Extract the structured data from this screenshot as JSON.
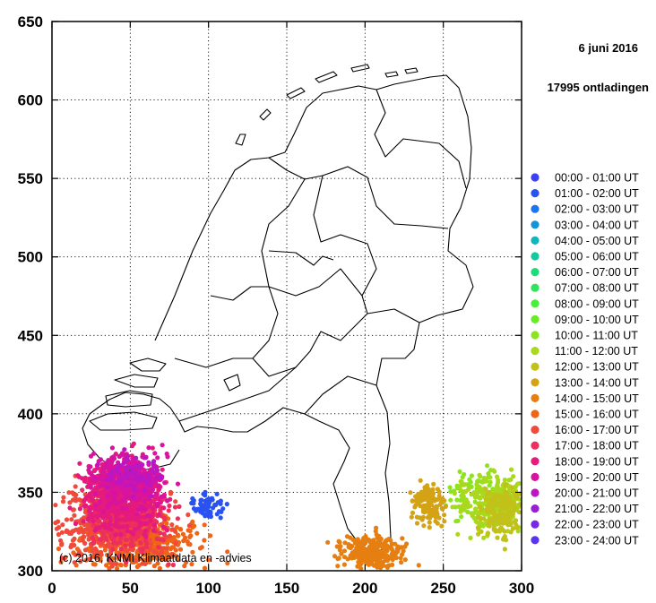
{
  "chart_data": {
    "type": "scatter",
    "title": "6 juni 2016",
    "subtitle": "17995 ontladingen",
    "credit": "(c) 2016, KNMI Klimaatdata en -advies",
    "xlim": [
      0,
      300
    ],
    "ylim": [
      300,
      650
    ],
    "x_ticks": [
      0,
      50,
      100,
      150,
      200,
      250,
      300
    ],
    "y_ticks": [
      300,
      350,
      400,
      450,
      500,
      550,
      600,
      650
    ],
    "grid": true,
    "legend_position": "right",
    "series": [
      {
        "name": "00:00 - 01:00 UT",
        "color": "#3f3ff5",
        "count": 0
      },
      {
        "name": "01:00 - 02:00 UT",
        "color": "#2a52f0",
        "count": 60,
        "center": [
          100,
          341
        ],
        "spread": [
          5,
          4
        ]
      },
      {
        "name": "02:00 - 03:00 UT",
        "color": "#1a75ee",
        "count": 0
      },
      {
        "name": "03:00 - 04:00 UT",
        "color": "#1493d6",
        "count": 0
      },
      {
        "name": "04:00 - 05:00 UT",
        "color": "#12b4be",
        "count": 0
      },
      {
        "name": "05:00 - 06:00 UT",
        "color": "#14c99d",
        "count": 0
      },
      {
        "name": "06:00 - 07:00 UT",
        "color": "#1cdc7a",
        "count": 0
      },
      {
        "name": "07:00 - 08:00 UT",
        "color": "#2de65a",
        "count": 0
      },
      {
        "name": "08:00 - 09:00 UT",
        "color": "#47ef3a",
        "count": 0
      },
      {
        "name": "09:00 - 10:00 UT",
        "color": "#66ee22",
        "count": 0
      },
      {
        "name": "10:00 - 11:00 UT",
        "color": "#8ce41e",
        "count": 90,
        "center": [
          272,
          348
        ],
        "spread": [
          9,
          7
        ]
      },
      {
        "name": "11:00 - 12:00 UT",
        "color": "#a9d81c",
        "count": 260,
        "center": [
          283,
          344
        ],
        "spread": [
          11,
          9
        ]
      },
      {
        "name": "12:00 - 13:00 UT",
        "color": "#c2c11a",
        "count": 180,
        "center": [
          288,
          338
        ],
        "spread": [
          7,
          8
        ]
      },
      {
        "name": "13:00 - 14:00 UT",
        "color": "#d4a315",
        "count": 150,
        "center": [
          240,
          343
        ],
        "spread": [
          5,
          6
        ]
      },
      {
        "name": "14:00 - 15:00 UT",
        "color": "#e67f12",
        "count": 260,
        "center": [
          205,
          312
        ],
        "spread": [
          10,
          5
        ]
      },
      {
        "name": "15:00 - 16:00 UT",
        "color": "#ef6416",
        "count": 420,
        "center": [
          55,
          318
        ],
        "spread": [
          20,
          9
        ]
      },
      {
        "name": "16:00 - 17:00 UT",
        "color": "#f04a3c",
        "count": 420,
        "center": [
          38,
          330
        ],
        "spread": [
          18,
          12
        ]
      },
      {
        "name": "17:00 - 18:00 UT",
        "color": "#ec2f5c",
        "count": 420,
        "center": [
          48,
          338
        ],
        "spread": [
          12,
          13
        ]
      },
      {
        "name": "18:00 - 19:00 UT",
        "color": "#e41a7e",
        "count": 560,
        "center": [
          45,
          348
        ],
        "spread": [
          12,
          11
        ]
      },
      {
        "name": "19:00 - 20:00 UT",
        "color": "#d813a0",
        "count": 320,
        "center": [
          50,
          357
        ],
        "spread": [
          11,
          8
        ]
      },
      {
        "name": "20:00 - 21:00 UT",
        "color": "#bb16c4",
        "count": 80,
        "center": [
          52,
          362
        ],
        "spread": [
          10,
          6
        ]
      },
      {
        "name": "21:00 - 22:00 UT",
        "color": "#9a1ed9",
        "count": 0
      },
      {
        "name": "22:00 - 23:00 UT",
        "color": "#7928e6",
        "count": 0
      },
      {
        "name": "23:00 - 24:00 UT",
        "color": "#5a34ee",
        "count": 0
      }
    ]
  }
}
